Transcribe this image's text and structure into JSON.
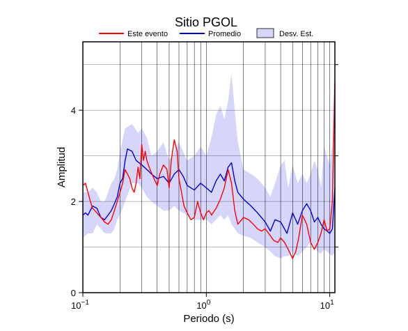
{
  "chart_data": {
    "type": "line",
    "title": "Sitio PGOL",
    "xlabel": "Periodo (s)",
    "ylabel": "Amplitud",
    "xscale": "log",
    "xlim": [
      0.1,
      11
    ],
    "ylim": [
      0,
      5.5
    ],
    "x_ticks": [
      {
        "value": 0.1,
        "base": "10",
        "exp": "−1"
      },
      {
        "value": 1,
        "base": "10",
        "exp": "0"
      },
      {
        "value": 10,
        "base": "10",
        "exp": "1"
      }
    ],
    "y_ticks": [
      0,
      2,
      4
    ],
    "grid": "vertical log gridlines at 1-9 of each decade; horizontal lines at 1, 3, 5 (right side ticks)",
    "legend": {
      "placement": "top",
      "entries": [
        {
          "label": "Este evento",
          "kind": "line",
          "color": "#ff0000"
        },
        {
          "label": "Promedio",
          "kind": "line",
          "color": "#0000dd"
        },
        {
          "label": "Desv. Est.",
          "kind": "fill",
          "color": "#d6d6fb"
        }
      ]
    },
    "series": [
      {
        "name": "Este evento",
        "color": "#ff0000",
        "x": [
          0.1,
          0.105,
          0.11,
          0.115,
          0.12,
          0.125,
          0.13,
          0.14,
          0.15,
          0.16,
          0.17,
          0.18,
          0.19,
          0.2,
          0.21,
          0.22,
          0.23,
          0.24,
          0.25,
          0.26,
          0.27,
          0.28,
          0.29,
          0.3,
          0.31,
          0.32,
          0.33,
          0.35,
          0.37,
          0.4,
          0.42,
          0.45,
          0.48,
          0.5,
          0.52,
          0.55,
          0.58,
          0.6,
          0.63,
          0.66,
          0.7,
          0.75,
          0.8,
          0.85,
          0.9,
          0.95,
          1.0,
          1.05,
          1.1,
          1.2,
          1.3,
          1.4,
          1.5,
          1.6,
          1.7,
          1.8,
          2.0,
          2.2,
          2.4,
          2.6,
          2.8,
          3.0,
          3.2,
          3.5,
          3.8,
          4.0,
          4.3,
          4.6,
          5.0,
          5.3,
          5.6,
          6.0,
          6.5,
          7.0,
          7.5,
          8.0,
          8.5,
          9.0,
          9.5,
          10.0,
          10.5,
          11.0
        ],
        "y": [
          2.35,
          2.4,
          2.2,
          2.0,
          1.85,
          1.8,
          1.75,
          1.65,
          1.55,
          1.5,
          1.6,
          1.8,
          2.0,
          2.2,
          2.4,
          2.7,
          2.6,
          2.5,
          2.3,
          2.2,
          2.4,
          2.75,
          2.5,
          3.25,
          2.9,
          3.1,
          2.9,
          2.7,
          2.55,
          2.35,
          2.6,
          2.8,
          2.7,
          2.3,
          2.9,
          3.35,
          3.1,
          2.5,
          2.2,
          1.9,
          1.75,
          1.6,
          1.65,
          2.0,
          1.75,
          1.6,
          1.75,
          1.8,
          1.7,
          1.85,
          2.05,
          2.3,
          2.7,
          2.4,
          1.8,
          1.5,
          1.65,
          1.6,
          1.5,
          1.4,
          1.35,
          1.4,
          1.3,
          1.15,
          1.1,
          1.2,
          1.1,
          0.95,
          0.75,
          0.9,
          1.2,
          1.7,
          1.5,
          1.1,
          0.95,
          1.1,
          1.3,
          1.6,
          1.35,
          1.4,
          2.0,
          4.6
        ]
      },
      {
        "name": "Promedio",
        "color": "#0000dd",
        "x": [
          0.1,
          0.105,
          0.11,
          0.12,
          0.13,
          0.14,
          0.15,
          0.16,
          0.17,
          0.18,
          0.19,
          0.2,
          0.21,
          0.22,
          0.23,
          0.25,
          0.27,
          0.3,
          0.33,
          0.36,
          0.4,
          0.45,
          0.5,
          0.55,
          0.6,
          0.65,
          0.7,
          0.8,
          0.9,
          1.0,
          1.1,
          1.2,
          1.3,
          1.4,
          1.5,
          1.6,
          1.7,
          1.8,
          2.0,
          2.3,
          2.6,
          3.0,
          3.3,
          3.6,
          4.0,
          4.5,
          5.0,
          5.5,
          6.0,
          6.5,
          7.0,
          7.5,
          8.0,
          8.5,
          9.0,
          9.5,
          10.0,
          10.5,
          11.0
        ],
        "y": [
          1.7,
          1.75,
          1.7,
          1.9,
          1.85,
          1.65,
          1.6,
          1.7,
          1.8,
          1.95,
          2.1,
          2.4,
          2.5,
          2.9,
          3.15,
          3.1,
          2.9,
          2.8,
          2.7,
          2.6,
          2.5,
          2.55,
          2.4,
          2.6,
          2.7,
          2.55,
          2.35,
          2.25,
          2.4,
          2.3,
          2.2,
          2.45,
          2.6,
          2.45,
          2.75,
          2.85,
          2.45,
          2.2,
          2.05,
          1.9,
          1.75,
          1.55,
          1.35,
          1.6,
          1.55,
          1.3,
          1.75,
          1.5,
          1.8,
          1.95,
          1.8,
          1.55,
          1.65,
          1.5,
          1.4,
          1.35,
          1.3,
          1.4,
          2.3
        ]
      }
    ],
    "std_band": {
      "name": "Desv. Est.",
      "color": "#d6d6fb",
      "x": [
        0.1,
        0.11,
        0.12,
        0.13,
        0.14,
        0.15,
        0.16,
        0.17,
        0.18,
        0.19,
        0.2,
        0.22,
        0.25,
        0.28,
        0.3,
        0.33,
        0.36,
        0.4,
        0.45,
        0.5,
        0.55,
        0.6,
        0.7,
        0.8,
        0.9,
        1.0,
        1.1,
        1.2,
        1.3,
        1.4,
        1.5,
        1.6,
        1.7,
        1.8,
        2.0,
        2.3,
        2.6,
        3.0,
        3.3,
        3.6,
        4.0,
        4.3,
        4.6,
        5.0,
        5.5,
        6.0,
        6.5,
        7.0,
        7.5,
        8.0,
        8.5,
        9.0,
        9.5,
        10.0,
        10.5,
        11.0
      ],
      "upper": [
        2.2,
        2.2,
        2.3,
        2.2,
        2.0,
        2.0,
        2.2,
        2.4,
        2.5,
        2.7,
        3.1,
        3.6,
        3.7,
        3.5,
        3.6,
        3.4,
        3.0,
        3.1,
        3.3,
        2.9,
        3.1,
        3.3,
        2.9,
        3.0,
        3.2,
        3.0,
        3.4,
        3.9,
        4.1,
        3.8,
        4.2,
        4.8,
        4.0,
        3.3,
        2.7,
        2.6,
        2.5,
        2.3,
        2.1,
        2.4,
        2.8,
        2.9,
        2.3,
        2.8,
        2.4,
        2.6,
        2.4,
        2.6,
        2.9,
        2.7,
        2.3,
        3.2,
        3.0,
        2.8,
        3.3,
        5.4
      ],
      "lower": [
        1.2,
        1.3,
        1.3,
        1.5,
        1.4,
        1.3,
        1.3,
        1.3,
        1.4,
        1.6,
        1.7,
        2.0,
        2.4,
        2.4,
        2.3,
        2.1,
        2.0,
        1.9,
        1.8,
        1.8,
        1.9,
        1.8,
        1.7,
        1.6,
        1.6,
        1.6,
        1.5,
        1.6,
        1.7,
        1.6,
        1.7,
        1.5,
        1.4,
        1.3,
        1.25,
        1.2,
        1.1,
        1.0,
        0.9,
        0.8,
        0.75,
        0.8,
        0.8,
        0.9,
        0.8,
        0.9,
        1.0,
        1.1,
        1.0,
        0.9,
        0.85,
        0.95,
        0.9,
        0.85,
        0.8,
        0.9
      ]
    }
  }
}
